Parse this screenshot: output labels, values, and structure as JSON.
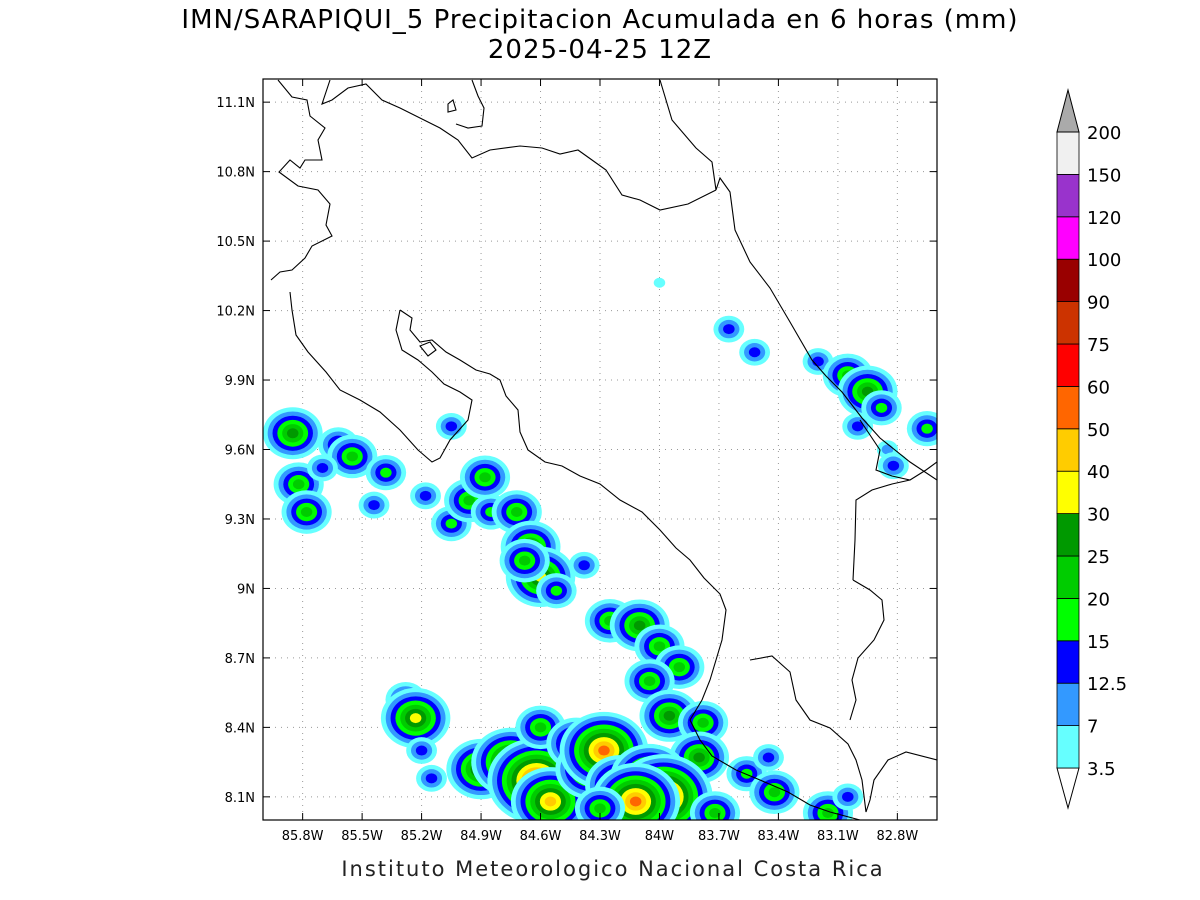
{
  "title": {
    "line1": "IMN/SARAPIQUI_5 Precipitacion Acumulada en 6 horas (mm)",
    "line2": "2025-04-25 12Z"
  },
  "credit": "Instituto Meteorologico Nacional Costa Rica",
  "map": {
    "lon_range": [
      -86.0,
      -82.6
    ],
    "lat_range": [
      8.0,
      11.2
    ],
    "lon_ticks": [
      {
        "value": -85.8,
        "label": "85.8W"
      },
      {
        "value": -85.5,
        "label": "85.5W"
      },
      {
        "value": -85.2,
        "label": "85.2W"
      },
      {
        "value": -84.9,
        "label": "84.9W"
      },
      {
        "value": -84.6,
        "label": "84.6W"
      },
      {
        "value": -84.3,
        "label": "84.3W"
      },
      {
        "value": -84.0,
        "label": "84W"
      },
      {
        "value": -83.7,
        "label": "83.7W"
      },
      {
        "value": -83.4,
        "label": "83.4W"
      },
      {
        "value": -83.1,
        "label": "83.1W"
      },
      {
        "value": -82.8,
        "label": "82.8W"
      }
    ],
    "lat_ticks": [
      {
        "value": 11.1,
        "label": "11.1N"
      },
      {
        "value": 10.8,
        "label": "10.8N"
      },
      {
        "value": 10.5,
        "label": "10.5N"
      },
      {
        "value": 10.2,
        "label": "10.2N"
      },
      {
        "value": 9.9,
        "label": "9.9N"
      },
      {
        "value": 9.6,
        "label": "9.6N"
      },
      {
        "value": 9.3,
        "label": "9.3N"
      },
      {
        "value": 9.0,
        "label": "9N"
      },
      {
        "value": 8.7,
        "label": "8.7N"
      },
      {
        "value": 8.4,
        "label": "8.4N"
      },
      {
        "value": 8.1,
        "label": "8.1N"
      }
    ],
    "grid": true
  },
  "colorbar": {
    "levels": [
      {
        "label": "3.5",
        "color": "#66ffff"
      },
      {
        "label": "7",
        "color": "#3399ff"
      },
      {
        "label": "12.5",
        "color": "#0000ff"
      },
      {
        "label": "15",
        "color": "#00ff00"
      },
      {
        "label": "20",
        "color": "#00cc00"
      },
      {
        "label": "25",
        "color": "#009900"
      },
      {
        "label": "30",
        "color": "#ffff00"
      },
      {
        "label": "40",
        "color": "#ffcc00"
      },
      {
        "label": "50",
        "color": "#ff6600"
      },
      {
        "label": "60",
        "color": "#ff0000"
      },
      {
        "label": "75",
        "color": "#cc3300"
      },
      {
        "label": "90",
        "color": "#990000"
      },
      {
        "label": "100",
        "color": "#ff00ff"
      },
      {
        "label": "120",
        "color": "#9933cc"
      },
      {
        "label": "150",
        "color": "#f0f0f0"
      },
      {
        "label": "200",
        "color": "#aaaaaa"
      }
    ]
  },
  "precip_cells": [
    {
      "lon": -85.85,
      "lat": 9.67,
      "level": 5
    },
    {
      "lon": -85.82,
      "lat": 9.45,
      "level": 4
    },
    {
      "lon": -85.62,
      "lat": 9.62,
      "level": 3
    },
    {
      "lon": -85.55,
      "lat": 9.57,
      "level": 4
    },
    {
      "lon": -85.7,
      "lat": 9.52,
      "level": 2
    },
    {
      "lon": -85.38,
      "lat": 9.5,
      "level": 3
    },
    {
      "lon": -85.78,
      "lat": 9.33,
      "level": 4
    },
    {
      "lon": -85.44,
      "lat": 9.36,
      "level": 2
    },
    {
      "lon": -85.18,
      "lat": 9.4,
      "level": 2
    },
    {
      "lon": -85.05,
      "lat": 9.28,
      "level": 3
    },
    {
      "lon": -84.96,
      "lat": 9.38,
      "level": 4
    },
    {
      "lon": -84.85,
      "lat": 9.33,
      "level": 3
    },
    {
      "lon": -84.88,
      "lat": 9.48,
      "level": 4
    },
    {
      "lon": -84.72,
      "lat": 9.33,
      "level": 4
    },
    {
      "lon": -84.65,
      "lat": 9.18,
      "level": 5
    },
    {
      "lon": -84.6,
      "lat": 9.05,
      "level": 6
    },
    {
      "lon": -84.68,
      "lat": 9.12,
      "level": 4
    },
    {
      "lon": -84.52,
      "lat": 8.99,
      "level": 3
    },
    {
      "lon": -84.38,
      "lat": 9.1,
      "level": 2
    },
    {
      "lon": -84.25,
      "lat": 8.86,
      "level": 4
    },
    {
      "lon": -84.1,
      "lat": 8.84,
      "level": 5
    },
    {
      "lon": -84.0,
      "lat": 8.75,
      "level": 4
    },
    {
      "lon": -83.9,
      "lat": 8.66,
      "level": 4
    },
    {
      "lon": -84.05,
      "lat": 8.6,
      "level": 4
    },
    {
      "lon": -83.95,
      "lat": 8.45,
      "level": 5
    },
    {
      "lon": -83.78,
      "lat": 8.42,
      "level": 4
    },
    {
      "lon": -83.8,
      "lat": 8.27,
      "level": 5
    },
    {
      "lon": -83.56,
      "lat": 8.2,
      "level": 3
    },
    {
      "lon": -83.45,
      "lat": 8.27,
      "level": 2
    },
    {
      "lon": -83.42,
      "lat": 8.12,
      "level": 4
    },
    {
      "lon": -85.28,
      "lat": 8.52,
      "level": 3
    },
    {
      "lon": -85.23,
      "lat": 8.44,
      "level": 6
    },
    {
      "lon": -85.2,
      "lat": 8.3,
      "level": 2
    },
    {
      "lon": -85.15,
      "lat": 8.18,
      "level": 2
    },
    {
      "lon": -84.9,
      "lat": 8.22,
      "level": 6
    },
    {
      "lon": -84.75,
      "lat": 8.25,
      "level": 7
    },
    {
      "lon": -84.62,
      "lat": 8.17,
      "level": 9
    },
    {
      "lon": -84.55,
      "lat": 8.08,
      "level": 7
    },
    {
      "lon": -84.6,
      "lat": 8.4,
      "level": 4
    },
    {
      "lon": -84.42,
      "lat": 8.33,
      "level": 5
    },
    {
      "lon": -84.35,
      "lat": 8.22,
      "level": 6
    },
    {
      "lon": -84.28,
      "lat": 8.3,
      "level": 8
    },
    {
      "lon": -84.2,
      "lat": 8.15,
      "level": 6
    },
    {
      "lon": -84.05,
      "lat": 8.18,
      "level": 7
    },
    {
      "lon": -83.98,
      "lat": 8.1,
      "level": 9
    },
    {
      "lon": -84.12,
      "lat": 8.08,
      "level": 8
    },
    {
      "lon": -84.3,
      "lat": 8.05,
      "level": 4
    },
    {
      "lon": -83.72,
      "lat": 8.03,
      "level": 4
    },
    {
      "lon": -83.15,
      "lat": 8.03,
      "level": 4
    },
    {
      "lon": -83.05,
      "lat": 8.1,
      "level": 2
    },
    {
      "lon": -84.0,
      "lat": 10.32,
      "level": 0
    },
    {
      "lon": -83.65,
      "lat": 10.12,
      "level": 2
    },
    {
      "lon": -83.52,
      "lat": 10.02,
      "level": 2
    },
    {
      "lon": -83.2,
      "lat": 9.98,
      "level": 2
    },
    {
      "lon": -83.05,
      "lat": 9.92,
      "level": 4
    },
    {
      "lon": -82.95,
      "lat": 9.85,
      "level": 5
    },
    {
      "lon": -82.88,
      "lat": 9.78,
      "level": 3
    },
    {
      "lon": -83.0,
      "lat": 9.7,
      "level": 2
    },
    {
      "lon": -82.65,
      "lat": 9.69,
      "level": 3
    },
    {
      "lon": -82.85,
      "lat": 9.6,
      "level": 1
    },
    {
      "lon": -82.82,
      "lat": 9.53,
      "level": 2
    },
    {
      "lon": -85.05,
      "lat": 9.7,
      "level": 2
    }
  ]
}
